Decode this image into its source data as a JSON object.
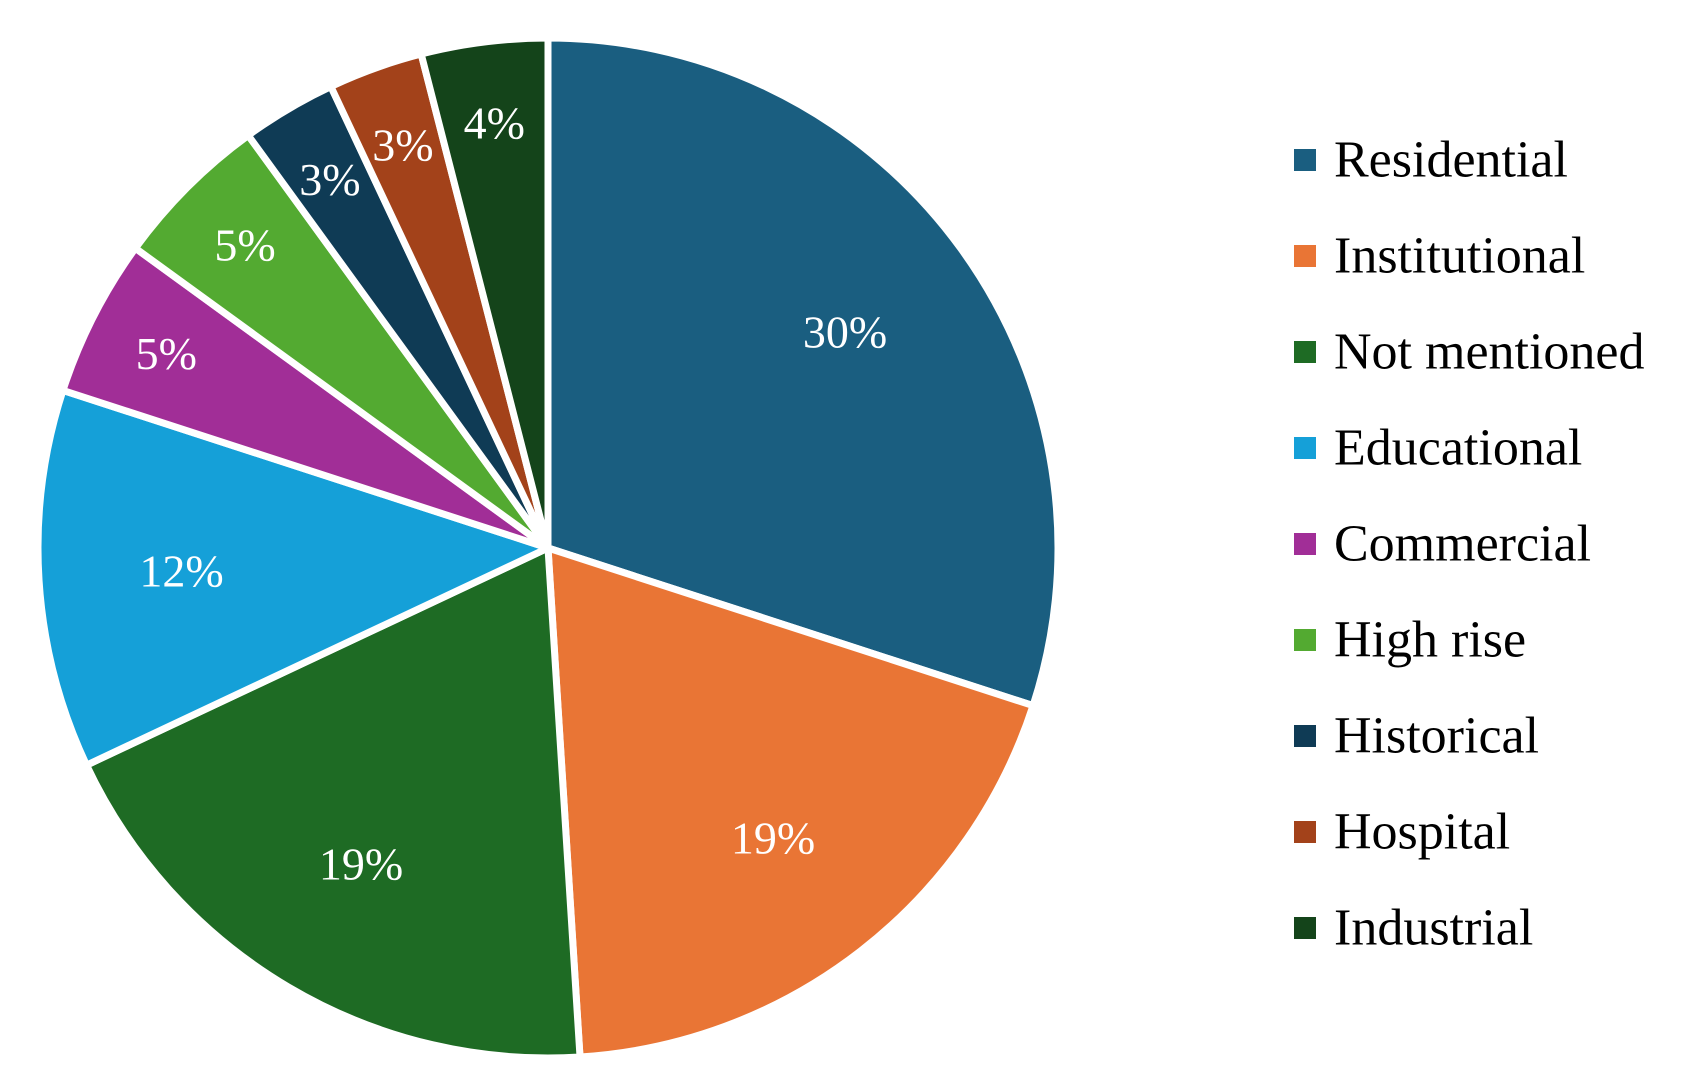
{
  "chart_data": {
    "type": "pie",
    "title": "",
    "legend_position": "right",
    "slices": [
      {
        "label": "Residential",
        "value": 30,
        "display": "30%",
        "color": "#1a5e80"
      },
      {
        "label": "Institutional",
        "value": 19,
        "display": "19%",
        "color": "#e97535"
      },
      {
        "label": "Not mentioned",
        "value": 19,
        "display": "19%",
        "color": "#1e6b24"
      },
      {
        "label": "Educational",
        "value": 12,
        "display": "12%",
        "color": "#15a0d8"
      },
      {
        "label": "Commercial",
        "value": 5,
        "display": "5%",
        "color": "#a12e97"
      },
      {
        "label": "High rise",
        "value": 5,
        "display": "5%",
        "color": "#53aa31"
      },
      {
        "label": "Historical",
        "value": 3,
        "display": "3%",
        "color": "#0f3b55"
      },
      {
        "label": "Hospital",
        "value": 3,
        "display": "3%",
        "color": "#a3421a"
      },
      {
        "label": "Industrial",
        "value": 4,
        "display": "4%",
        "color": "#14441a"
      }
    ]
  }
}
